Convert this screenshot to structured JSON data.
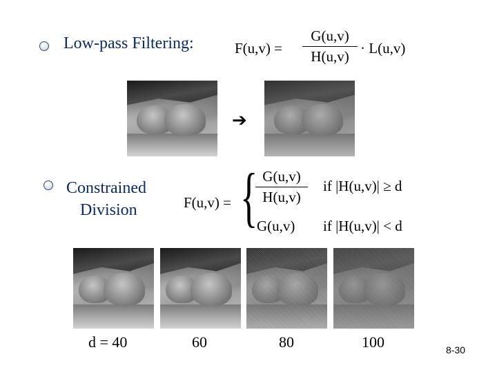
{
  "section1": {
    "title": "Low-pass Filtering:",
    "formula": {
      "lhs": "F(u,v) =",
      "numerator": "G(u,v)",
      "denominator": "H(u,v)",
      "rhs": "· L(u,v)"
    }
  },
  "arrow_icon": "right-arrow-icon",
  "section2": {
    "title_line1": "Constrained",
    "title_line2": "Division",
    "formula": {
      "lhs": "F(u,v) =",
      "case1_numerator": "G(u,v)",
      "case1_denominator": "H(u,v)",
      "case1_condition": "if |H(u,v)| ≥ d",
      "case2_value": "G(u,v)",
      "case2_condition": "if |H(u,v)| < d"
    }
  },
  "d_labels": {
    "first": "d = 40",
    "second": "60",
    "third": "80",
    "fourth": "100"
  },
  "page_number": "8-30"
}
